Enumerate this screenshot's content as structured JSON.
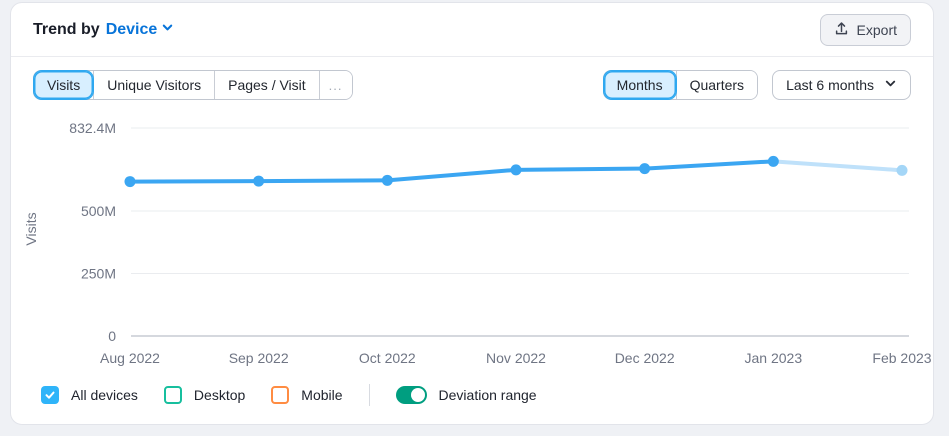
{
  "header": {
    "title_prefix": "Trend by",
    "title_link": "Device",
    "export_label": "Export"
  },
  "toolbar": {
    "metric_tabs": [
      {
        "label": "Visits",
        "selected": true
      },
      {
        "label": "Unique Visitors",
        "selected": false
      },
      {
        "label": "Pages / Visit",
        "selected": false
      }
    ],
    "more_label": "...",
    "period_tabs": [
      {
        "label": "Months",
        "selected": true
      },
      {
        "label": "Quarters",
        "selected": false
      }
    ],
    "range_dropdown": "Last 6 months"
  },
  "chart_data": {
    "type": "line",
    "title": "Trend by Device",
    "ylabel": "Visits",
    "x": [
      "Aug 2022",
      "Sep 2022",
      "Oct 2022",
      "Nov 2022",
      "Dec 2022",
      "Jan 2023",
      "Feb 2023"
    ],
    "series": [
      {
        "name": "All devices",
        "unit": "M visits",
        "values_millions": [
          618,
          620,
          623,
          665,
          670,
          699,
          663
        ],
        "color": "#3BA6F2",
        "projected_last_point": true,
        "projected_color": "#BFE1FA",
        "projected_dot_color": "#A4D6F7"
      }
    ],
    "yticks": [
      {
        "label": "832.4M",
        "value": 832.4
      },
      {
        "label": "500M",
        "value": 500
      },
      {
        "label": "250M",
        "value": 250
      },
      {
        "label": "0",
        "value": 0
      }
    ],
    "ylim": [
      0,
      832.4
    ],
    "grid": true,
    "legend_position": "bottom"
  },
  "legend": {
    "items": [
      {
        "label": "All devices",
        "checked": true,
        "color": "#2FB4F9"
      },
      {
        "label": "Desktop",
        "checked": false,
        "color": "#17BF9E"
      },
      {
        "label": "Mobile",
        "checked": false,
        "color": "#FF8C42"
      }
    ],
    "toggle": {
      "label": "Deviation range",
      "on": true,
      "color": "#009E80"
    }
  },
  "colors": {
    "line_blue": "#3BA6F2",
    "projected_line": "#BFE1FA",
    "link_blue": "#0874D9",
    "selected_tab_bg": "#D8EFFF",
    "selected_tab_border": "#2FA8F0",
    "checkbox_blue": "#2FB4F9",
    "desktop_teal": "#17BF9E",
    "mobile_orange": "#FF8C42",
    "toggle_green": "#009E80",
    "card_bg": "#FFFFFF",
    "page_bg": "#EFF1F5"
  }
}
